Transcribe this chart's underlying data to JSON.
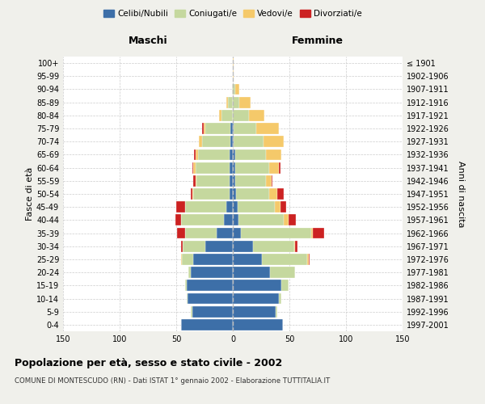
{
  "age_groups": [
    "0-4",
    "5-9",
    "10-14",
    "15-19",
    "20-24",
    "25-29",
    "30-34",
    "35-39",
    "40-44",
    "45-49",
    "50-54",
    "55-59",
    "60-64",
    "65-69",
    "70-74",
    "75-79",
    "80-84",
    "85-89",
    "90-94",
    "95-99",
    "100+"
  ],
  "birth_years": [
    "1997-2001",
    "1992-1996",
    "1987-1991",
    "1982-1986",
    "1977-1981",
    "1972-1976",
    "1967-1971",
    "1962-1966",
    "1957-1961",
    "1952-1956",
    "1947-1951",
    "1942-1946",
    "1937-1941",
    "1932-1936",
    "1927-1931",
    "1922-1926",
    "1917-1921",
    "1912-1916",
    "1907-1911",
    "1902-1906",
    "≤ 1901"
  ],
  "colors": {
    "celibi": "#3d6fa8",
    "coniugati": "#c5d89e",
    "vedovi": "#f5c96a",
    "divorziati": "#cc2222"
  },
  "maschi": {
    "celibi": [
      46,
      36,
      40,
      41,
      37,
      35,
      24,
      14,
      8,
      6,
      3,
      3,
      3,
      3,
      2,
      2,
      0,
      0,
      0,
      0,
      0
    ],
    "coniugati": [
      0,
      1,
      1,
      1,
      2,
      10,
      20,
      28,
      38,
      36,
      32,
      29,
      30,
      28,
      25,
      22,
      10,
      4,
      1,
      0,
      0
    ],
    "vedovi": [
      0,
      0,
      0,
      0,
      0,
      1,
      0,
      0,
      0,
      0,
      1,
      1,
      2,
      2,
      3,
      2,
      2,
      2,
      0,
      0,
      0
    ],
    "divorziati": [
      0,
      0,
      0,
      0,
      0,
      0,
      2,
      7,
      5,
      8,
      1,
      2,
      1,
      1,
      0,
      1,
      0,
      0,
      0,
      0,
      0
    ]
  },
  "femmine": {
    "celibi": [
      44,
      38,
      41,
      43,
      33,
      26,
      18,
      7,
      5,
      4,
      3,
      2,
      2,
      2,
      1,
      1,
      0,
      0,
      0,
      0,
      0
    ],
    "coniugati": [
      0,
      1,
      2,
      6,
      22,
      40,
      36,
      62,
      40,
      33,
      29,
      27,
      30,
      27,
      26,
      20,
      14,
      6,
      2,
      0,
      0
    ],
    "vedovi": [
      0,
      0,
      0,
      0,
      0,
      1,
      1,
      2,
      4,
      5,
      7,
      5,
      9,
      14,
      18,
      20,
      14,
      10,
      4,
      1,
      1
    ],
    "divorziati": [
      0,
      0,
      0,
      0,
      0,
      1,
      2,
      10,
      7,
      5,
      6,
      1,
      1,
      0,
      0,
      0,
      0,
      0,
      0,
      0,
      0
    ]
  },
  "xlim": 150,
  "title": "Popolazione per età, sesso e stato civile - 2002",
  "subtitle": "COMUNE DI MONTESCUDO (RN) - Dati ISTAT 1° gennaio 2002 - Elaborazione TUTTITALIA.IT",
  "ylabel_left": "Fasce di età",
  "ylabel_right": "Anni di nascita",
  "xlabel_maschi": "Maschi",
  "xlabel_femmine": "Femmine",
  "legend_labels": [
    "Celibi/Nubili",
    "Coniugati/e",
    "Vedovi/e",
    "Divorziati/e"
  ],
  "bg_color": "#f0f0eb",
  "plot_bg": "#ffffff"
}
